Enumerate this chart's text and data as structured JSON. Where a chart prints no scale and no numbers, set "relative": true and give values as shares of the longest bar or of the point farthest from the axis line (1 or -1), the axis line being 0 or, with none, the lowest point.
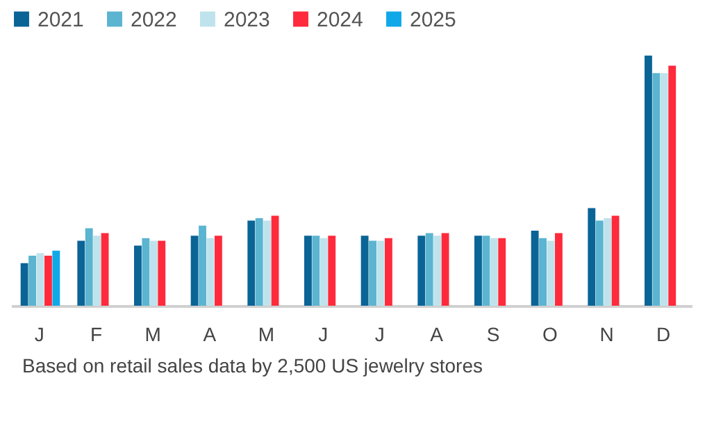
{
  "chart_data": {
    "type": "bar",
    "relative": true,
    "legend": "top",
    "categories": [
      "J",
      "F",
      "M",
      "A",
      "M",
      "J",
      "J",
      "A",
      "S",
      "O",
      "N",
      "D"
    ],
    "series": [
      {
        "name": "2021",
        "color": "#0a6496",
        "values": [
          0.17,
          0.26,
          0.24,
          0.28,
          0.34,
          0.28,
          0.28,
          0.28,
          0.28,
          0.3,
          0.39,
          1
        ]
      },
      {
        "name": "2022",
        "color": "#5bb4d0",
        "values": [
          0.2,
          0.31,
          0.27,
          0.32,
          0.35,
          0.28,
          0.26,
          0.29,
          0.28,
          0.27,
          0.34,
          0.93
        ]
      },
      {
        "name": "2023",
        "color": "#bfe3ec",
        "values": [
          0.21,
          0.28,
          0.26,
          0.27,
          0.34,
          0.27,
          0.26,
          0.28,
          0.27,
          0.26,
          0.35,
          0.93
        ]
      },
      {
        "name": "2024",
        "color": "#ff2a3c",
        "values": [
          0.2,
          0.29,
          0.26,
          0.28,
          0.36,
          0.28,
          0.27,
          0.29,
          0.27,
          0.29,
          0.36,
          0.96
        ]
      },
      {
        "name": "2025",
        "color": "#10a8e8",
        "values": [
          0.22,
          null,
          null,
          null,
          null,
          null,
          null,
          null,
          null,
          null,
          null,
          null
        ]
      }
    ],
    "annotations": [
      "Based on retail sales data by 2,500 US jewelry stores"
    ]
  }
}
